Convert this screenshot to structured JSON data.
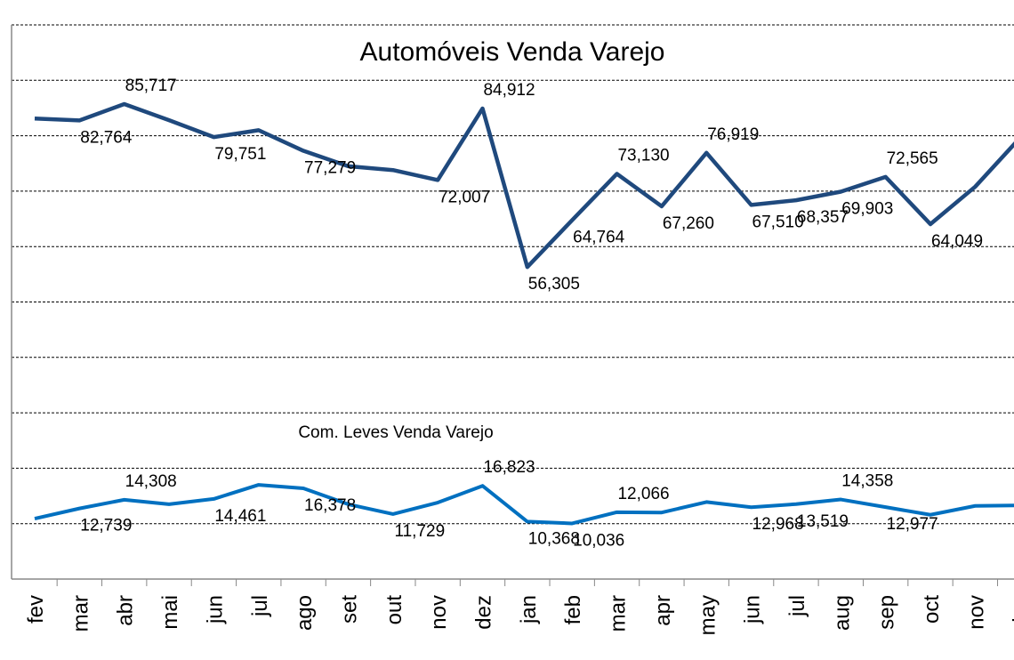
{
  "chart_data": {
    "type": "line",
    "title": "Automóveis Venda Varejo",
    "subtitle": "Com. Leves Venda Varejo",
    "categories": [
      "fev",
      "mar",
      "abr",
      "mai",
      "jun",
      "jul",
      "ago",
      "set",
      "out",
      "nov",
      "dez",
      "jan",
      "feb",
      "mar",
      "apr",
      "may",
      "jun",
      "jul",
      "aug",
      "sep",
      "oct",
      "nov",
      "dez"
    ],
    "series": [
      {
        "name": "Automóveis Venda Varejo",
        "color": "#1f497d",
        "values": [
          83100,
          82764,
          85717,
          82800,
          79751,
          81000,
          77279,
          74500,
          73800,
          72007,
          84912,
          56305,
          64764,
          73130,
          67260,
          76919,
          67510,
          68357,
          69903,
          72565,
          64049,
          70800,
          79600
        ],
        "value_labels": [
          null,
          "82,764",
          "85,717",
          null,
          "79,751",
          null,
          "77,279",
          null,
          null,
          "72,007",
          "84,912",
          "56,305",
          "64,764",
          "73,130",
          "67,260",
          "76,919",
          "67,510",
          "68,357",
          "69,903",
          "72,565",
          "64,049",
          null,
          null
        ]
      },
      {
        "name": "Com. Leves Venda Varejo",
        "color": "#0070c0",
        "values": [
          10900,
          12739,
          14308,
          13500,
          14461,
          17000,
          16378,
          13500,
          11729,
          13800,
          16823,
          10368,
          10036,
          12066,
          12000,
          13900,
          12968,
          13519,
          14358,
          12977,
          11600,
          13200,
          13300
        ],
        "value_labels": [
          null,
          "12,739",
          "14,308",
          null,
          "14,461",
          null,
          "16,378",
          null,
          "11,729",
          null,
          "16,823",
          "10,368",
          "10,036",
          "12,066",
          null,
          null,
          "12,968",
          "13,519",
          "14,358",
          "12,977",
          null,
          null,
          null
        ]
      }
    ],
    "ylim": [
      0,
      100000
    ],
    "yticks": [
      0,
      10000,
      20000,
      30000,
      40000,
      50000,
      60000,
      70000,
      80000,
      90000,
      100000
    ],
    "grid": true
  }
}
